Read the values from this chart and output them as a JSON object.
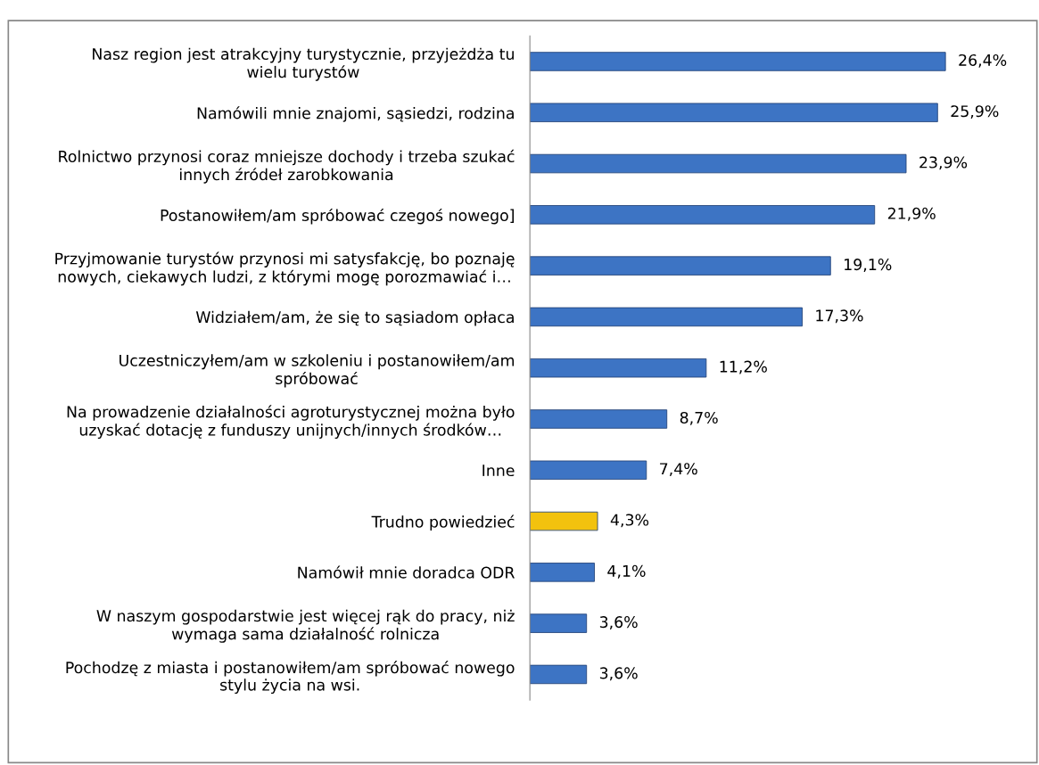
{
  "chart_data": {
    "type": "bar",
    "orientation": "horizontal",
    "data_labels": true,
    "grid": false,
    "legend": false,
    "categories": [
      "Nasz region jest atrakcyjny turystycznie, przyjeżdża tu\nwielu turystów",
      "Namówili mnie znajomi, sąsiedzi, rodzina",
      "Rolnictwo przynosi coraz mniejsze dochody i trzeba szukać\ninnych źródeł zarobkowania",
      "Postanowiłem/am spróbować czegoś nowego]",
      "Przyjmowanie turystów przynosi mi satysfakcję, bo poznaję\nnowych, ciekawych ludzi, z którymi mogę porozmawiać i…",
      "Widziałem/am, że się to sąsiadom opłaca",
      "Uczestniczyłem/am w szkoleniu i postanowiłem/am\nspróbować",
      "Na prowadzenie działalności agroturystycznej można było\nuzyskać dotację z funduszy unijnych/innych środków…",
      "Inne",
      "Trudno powiedzieć",
      "Namówił mnie doradca ODR",
      "W naszym gospodarstwie jest więcej rąk do pracy, niż\nwymaga sama działalność rolnicza",
      "Pochodzę z miasta i postanowiłem/am spróbować nowego\nstylu życia na wsi."
    ],
    "values": [
      26.4,
      25.9,
      23.9,
      21.9,
      19.1,
      17.3,
      11.2,
      8.7,
      7.4,
      4.3,
      4.1,
      3.6,
      3.6
    ],
    "value_labels": [
      "26,4%",
      "25,9%",
      "23,9%",
      "21,9%",
      "19,1%",
      "17,3%",
      "11,2%",
      "8,7%",
      "7,4%",
      "4,3%",
      "4,1%",
      "3,6%",
      "3,6%"
    ],
    "colors": [
      "#3d74c4",
      "#3d74c4",
      "#3d74c4",
      "#3d74c4",
      "#3d74c4",
      "#3d74c4",
      "#3d74c4",
      "#3d74c4",
      "#3d74c4",
      "#f2c20e",
      "#3d74c4",
      "#3d74c4",
      "#3d74c4"
    ]
  }
}
